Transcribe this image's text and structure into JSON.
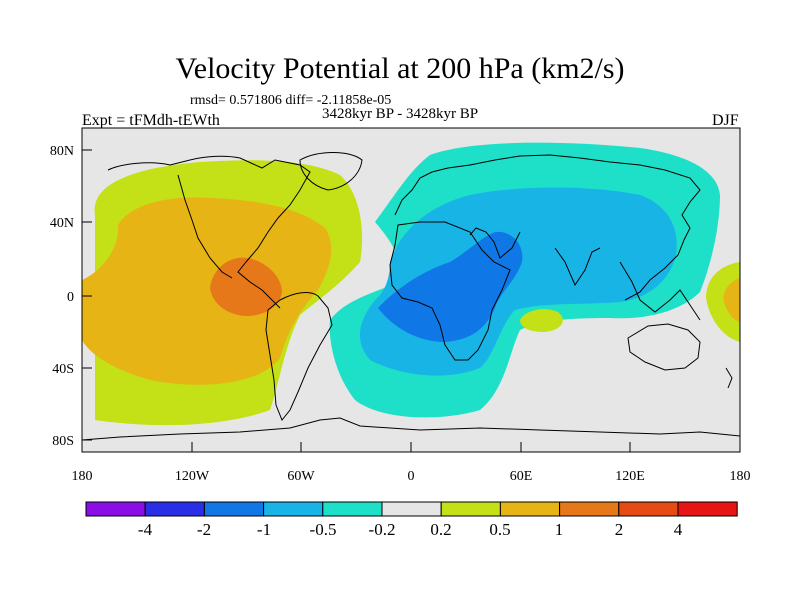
{
  "header": {
    "title": "Velocity Potential at 200 hPa (km2/s)",
    "stats": "rmsd= 0.571806 diff= -2.11858e-05",
    "subtitle": "3428kyr BP - 3428kyr BP",
    "left_label": "Expt = tFMdh-tEWth",
    "right_label": "DJF"
  },
  "axes": {
    "y_ticks": [
      "80N",
      "40N",
      "0",
      "40S",
      "80S"
    ],
    "x_ticks": [
      "180",
      "120W",
      "60W",
      "0",
      "60E",
      "120E",
      "180"
    ]
  },
  "colorbar": {
    "labels": [
      "-4",
      "-2",
      "-1",
      "-0.5",
      "-0.2",
      "0.2",
      "0.5",
      "1",
      "2",
      "4"
    ],
    "colors": [
      "#8a0fe6",
      "#2a2ee6",
      "#0f78e6",
      "#18b4e6",
      "#1ee0c8",
      "#e6e6e6",
      "#c4e016",
      "#e6b414",
      "#e6781a",
      "#e64b14",
      "#e61414"
    ]
  },
  "map_colors": {
    "background": "#e6e6e6",
    "positive_weak": "#c4e016",
    "positive_mid": "#e6b414",
    "positive_strong": "#e6781a",
    "negative_weak": "#1ee0c8",
    "negative_mid": "#18b4e6",
    "negative_strong": "#0f78e6",
    "coastline": "#000000"
  }
}
